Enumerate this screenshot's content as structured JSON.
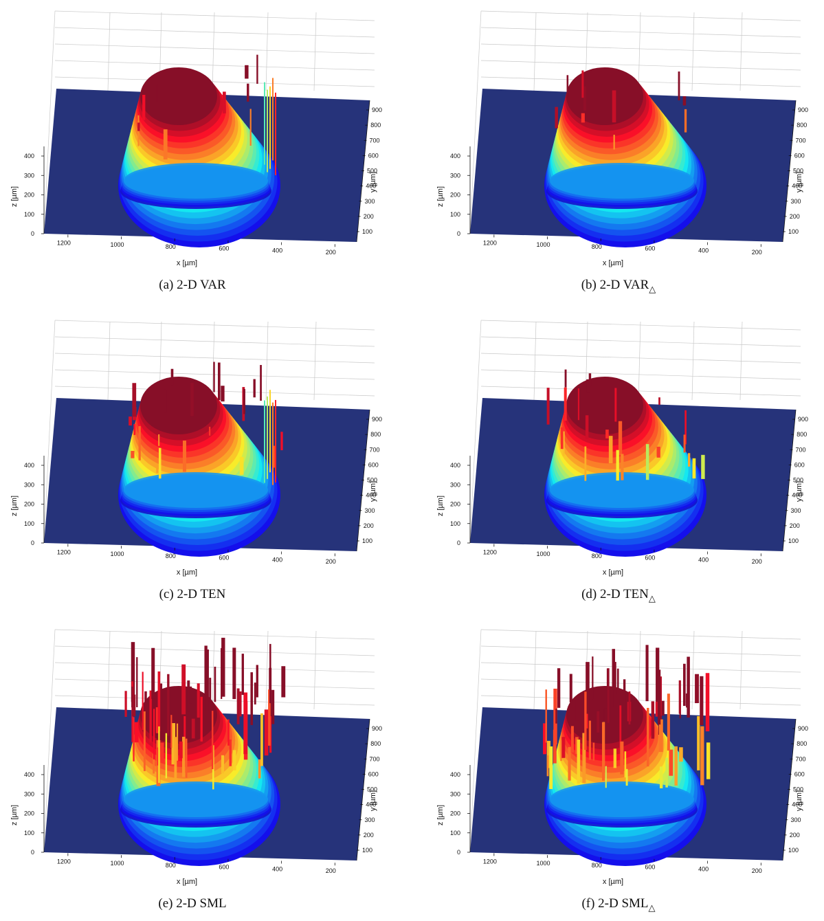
{
  "figure": {
    "panels": [
      {
        "id": "a",
        "caption": "(a) 2-D VAR",
        "caption_main": "(a) 2-D VAR",
        "caption_sub": "",
        "mode": "smooth",
        "seed": 11,
        "spikes": "right"
      },
      {
        "id": "b",
        "caption": "(b) 2-D VAR△",
        "caption_main": "(b) 2-D VAR",
        "caption_sub": "△",
        "mode": "smooth",
        "seed": 23,
        "spikes": "few"
      },
      {
        "id": "c",
        "caption": "(c) 2-D TEN",
        "caption_main": "(c) 2-D TEN",
        "caption_sub": "",
        "mode": "medium",
        "seed": 37,
        "spikes": "right"
      },
      {
        "id": "d",
        "caption": "(d) 2-D TEN△",
        "caption_main": "(d) 2-D TEN",
        "caption_sub": "△",
        "mode": "medium",
        "seed": 41,
        "spikes": "few"
      },
      {
        "id": "e",
        "caption": "(e) 2-D SML",
        "caption_main": "(e) 2-D SML",
        "caption_sub": "",
        "mode": "spiky",
        "seed": 53,
        "spikes": "many"
      },
      {
        "id": "f",
        "caption": "(f) 2-D SML△",
        "caption_main": "(f) 2-D SML",
        "caption_sub": "△",
        "mode": "spiky",
        "seed": 67,
        "spikes": "many"
      }
    ]
  },
  "chart_data": {
    "type": "surface",
    "xlabel": "x [µm]",
    "ylabel": "y [µm]",
    "zlabel": "z [µm]",
    "x_ticks": [
      1200,
      1000,
      800,
      600,
      400,
      200
    ],
    "y_ticks": [
      100,
      200,
      300,
      400,
      500,
      600,
      700,
      800,
      900
    ],
    "z_ticks": [
      0,
      100,
      200,
      300,
      400
    ],
    "xlim": [
      0,
      1300
    ],
    "ylim": [
      0,
      950
    ],
    "zlim": [
      0,
      700
    ],
    "colormap": "jet",
    "base_color": "#26337a",
    "grid": true
  }
}
